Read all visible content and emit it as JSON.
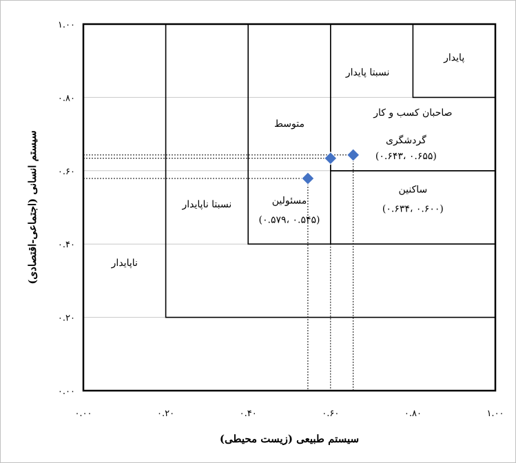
{
  "chart_data": {
    "type": "scatter",
    "xlabel": "سیستم طبیعی (زیست محیطی)",
    "ylabel": "سیستم انسانی (اجتماعی-اقتصادی)",
    "xlim": [
      0,
      1
    ],
    "ylim": [
      0,
      1
    ],
    "x_ticks": [
      {
        "value": 0.0,
        "label": "۰.۰۰"
      },
      {
        "value": 0.2,
        "label": "۰.۲۰"
      },
      {
        "value": 0.4,
        "label": "۰.۴۰"
      },
      {
        "value": 0.6,
        "label": "۰.۶۰"
      },
      {
        "value": 0.8,
        "label": "۰.۸۰"
      },
      {
        "value": 1.0,
        "label": "۱.۰۰"
      }
    ],
    "y_ticks": [
      {
        "value": 0.0,
        "label": "۰.۰۰"
      },
      {
        "value": 0.2,
        "label": "۰.۲۰"
      },
      {
        "value": 0.4,
        "label": "۰.۴۰"
      },
      {
        "value": 0.6,
        "label": "۰.۶۰"
      },
      {
        "value": 0.8,
        "label": "۰.۸۰"
      },
      {
        "value": 1.0,
        "label": "۱.۰۰"
      }
    ],
    "grid": true,
    "marker_color": "#4472c4",
    "regions": [
      {
        "name": "unstable",
        "label": "ناپایدار",
        "x": [
          0.0,
          1.0
        ],
        "y": [
          0.0,
          1.0
        ],
        "label_pos": [
          0.1,
          0.34
        ]
      },
      {
        "name": "relatively-unstable",
        "label": "نسبتا ناپایدار",
        "x": [
          0.2,
          1.0
        ],
        "y": [
          0.2,
          1.0
        ],
        "label_pos": [
          0.3,
          0.5
        ]
      },
      {
        "name": "medium",
        "label": "متوسط",
        "x": [
          0.4,
          1.0
        ],
        "y": [
          0.4,
          1.0
        ],
        "label_pos": [
          0.5,
          0.72
        ]
      },
      {
        "name": "relatively-stable",
        "label": "نسبتا پایدار",
        "x": [
          0.6,
          1.0
        ],
        "y": [
          0.6,
          1.0
        ],
        "label_pos": [
          0.69,
          0.86
        ]
      },
      {
        "name": "stable",
        "label": "پایدار",
        "x": [
          0.8,
          1.0
        ],
        "y": [
          0.8,
          1.0
        ],
        "label_pos": [
          0.9,
          0.9
        ]
      }
    ],
    "points": [
      {
        "name": "officials",
        "x": 0.545,
        "y": 0.579,
        "label": "مسئولین",
        "coords": "(۰.۵۴۵ ،۰.۵۷۹)",
        "label_pos": [
          0.5,
          0.51
        ]
      },
      {
        "name": "residents",
        "x": 0.6,
        "y": 0.634,
        "label": "ساکنین",
        "coords": "(۰.۶۰۰ ،۰.۶۳۴)",
        "label_pos": [
          0.8,
          0.54
        ]
      },
      {
        "name": "tourism-business-owners",
        "x": 0.655,
        "y": 0.643,
        "label": "صاحبان کسب و کار گردشگری",
        "label_line1": "صاحبان کسب و کار",
        "label_line2": "گردشگری",
        "coords": "(۰.۶۵۵ ،۰.۶۴۳)",
        "label_pos": [
          0.8,
          0.75
        ]
      }
    ]
  }
}
